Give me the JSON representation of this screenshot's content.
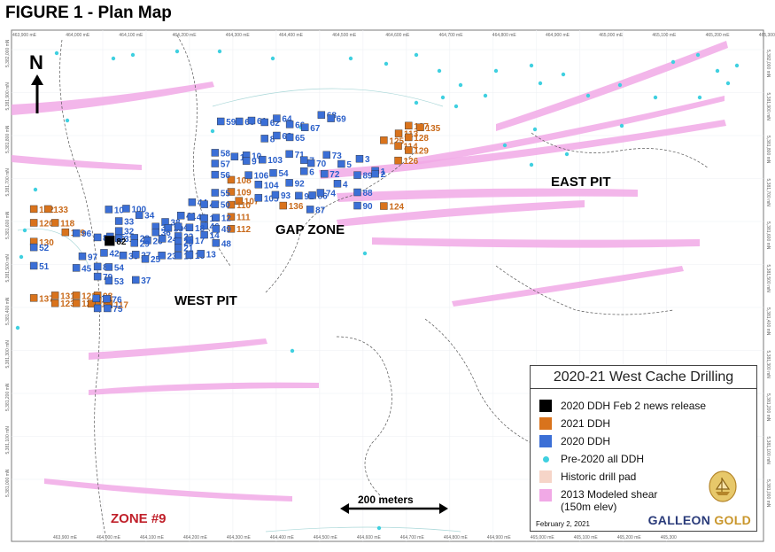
{
  "figure_title": "FIGURE 1 - Plan Map",
  "north_label": "N",
  "scale_bar_label": "200 meters",
  "zones": [
    {
      "id": "west-pit",
      "label": "WEST PIT",
      "color": "#000000"
    },
    {
      "id": "east-pit",
      "label": "EAST PIT",
      "color": "#000000"
    },
    {
      "id": "gap-zone",
      "label": "GAP ZONE",
      "color": "#000000"
    },
    {
      "id": "zone-9",
      "label": "ZONE #9",
      "color": "#c0202a"
    }
  ],
  "easting_labels": [
    "463,900 mE",
    "464,000 mE",
    "464,100 mE",
    "464,200 mE",
    "464,300 mE",
    "464,400 mE",
    "464,500 mE",
    "464,600 mE",
    "464,700 mE",
    "464,800 mE",
    "464,900 mE",
    "465,000 mE",
    "465,100 mE",
    "465,200 mE",
    "465,300"
  ],
  "northing_labels": [
    "5,382,000 mN",
    "5,381,900 mN",
    "5,381,800 mN",
    "5,381,700 mN",
    "5,381,600 mN",
    "5,381,500 mN",
    "5,381,400 mN",
    "5,381,300 mN",
    "5,381,200 mN",
    "5,381,100 mN",
    "5,381,000 mN"
  ],
  "drill_holes_2020_feb2": [
    {
      "label": "82",
      "e": 464112,
      "n": 5381555
    }
  ],
  "drill_holes_2021": [
    {
      "label": "132",
      "e": 463937,
      "n": 5381629
    },
    {
      "label": "133",
      "e": 463970,
      "n": 5381629
    },
    {
      "label": "120",
      "e": 463937,
      "n": 5381597
    },
    {
      "label": "118",
      "e": 463986,
      "n": 5381597
    },
    {
      "label": "119",
      "e": 464010,
      "n": 5381575
    },
    {
      "label": "130",
      "e": 463937,
      "n": 5381553
    },
    {
      "label": "137",
      "e": 463937,
      "n": 5381422
    },
    {
      "label": "131",
      "e": 463986,
      "n": 5381428
    },
    {
      "label": "121",
      "e": 464035,
      "n": 5381428
    },
    {
      "label": "98",
      "e": 464084,
      "n": 5381428
    },
    {
      "label": "99",
      "e": 464084,
      "n": 5381416
    },
    {
      "label": "123",
      "e": 463986,
      "n": 5381410
    },
    {
      "label": "122",
      "e": 464035,
      "n": 5381410
    },
    {
      "label": "117",
      "e": 464110,
      "n": 5381407
    },
    {
      "label": "115",
      "e": 464070,
      "n": 5381409
    },
    {
      "label": "108",
      "e": 464392,
      "n": 5381697
    },
    {
      "label": "109",
      "e": 464392,
      "n": 5381669
    },
    {
      "label": "107",
      "e": 464410,
      "n": 5381648
    },
    {
      "label": "110",
      "e": 464392,
      "n": 5381639
    },
    {
      "label": "111",
      "e": 464392,
      "n": 5381611
    },
    {
      "label": "112",
      "e": 464392,
      "n": 5381583
    },
    {
      "label": "136",
      "e": 464512,
      "n": 5381637
    },
    {
      "label": "127",
      "e": 464801,
      "n": 5381823
    },
    {
      "label": "135",
      "e": 464828,
      "n": 5381819
    },
    {
      "label": "113",
      "e": 464778,
      "n": 5381805
    },
    {
      "label": "128",
      "e": 464801,
      "n": 5381796
    },
    {
      "label": "125",
      "e": 464744,
      "n": 5381789
    },
    {
      "label": "114",
      "e": 464777,
      "n": 5381776
    },
    {
      "label": "129",
      "e": 464801,
      "n": 5381766
    },
    {
      "label": "126",
      "e": 464777,
      "n": 5381742
    },
    {
      "label": "124",
      "e": 464744,
      "n": 5381636
    }
  ],
  "drill_holes_2020": [
    {
      "label": "59",
      "e": 464368,
      "n": 5381833
    },
    {
      "label": "60",
      "e": 464411,
      "n": 5381833
    },
    {
      "label": "61",
      "e": 464439,
      "n": 5381835
    },
    {
      "label": "62",
      "e": 464469,
      "n": 5381831
    },
    {
      "label": "64",
      "e": 464497,
      "n": 5381840
    },
    {
      "label": "66",
      "e": 464527,
      "n": 5381826
    },
    {
      "label": "67",
      "e": 464562,
      "n": 5381819
    },
    {
      "label": "68",
      "e": 464600,
      "n": 5381848
    },
    {
      "label": "69",
      "e": 464622,
      "n": 5381840
    },
    {
      "label": "8",
      "e": 464469,
      "n": 5381793
    },
    {
      "label": "63",
      "e": 464497,
      "n": 5381800
    },
    {
      "label": "65",
      "e": 464527,
      "n": 5381796
    },
    {
      "label": "58",
      "e": 464355,
      "n": 5381760
    },
    {
      "label": "11",
      "e": 464400,
      "n": 5381751
    },
    {
      "label": "10",
      "e": 464427,
      "n": 5381754
    },
    {
      "label": "9",
      "e": 464427,
      "n": 5381741
    },
    {
      "label": "103",
      "e": 464464,
      "n": 5381744
    },
    {
      "label": "71",
      "e": 464526,
      "n": 5381757
    },
    {
      "label": "7",
      "e": 464560,
      "n": 5381743
    },
    {
      "label": "70",
      "e": 464576,
      "n": 5381736
    },
    {
      "label": "73",
      "e": 464612,
      "n": 5381755
    },
    {
      "label": "3",
      "e": 464688,
      "n": 5381746
    },
    {
      "label": "5",
      "e": 464646,
      "n": 5381734
    },
    {
      "label": "57",
      "e": 464355,
      "n": 5381735
    },
    {
      "label": "56",
      "e": 464355,
      "n": 5381709
    },
    {
      "label": "106",
      "e": 464432,
      "n": 5381708
    },
    {
      "label": "54",
      "e": 464489,
      "n": 5381713
    },
    {
      "label": "6",
      "e": 464560,
      "n": 5381717
    },
    {
      "label": "72",
      "e": 464607,
      "n": 5381711
    },
    {
      "label": "89",
      "e": 464683,
      "n": 5381708
    },
    {
      "label": "1",
      "e": 464724,
      "n": 5381718
    },
    {
      "label": "2",
      "e": 464724,
      "n": 5381711
    },
    {
      "label": "104",
      "e": 464455,
      "n": 5381686
    },
    {
      "label": "92",
      "e": 464526,
      "n": 5381690
    },
    {
      "label": "4",
      "e": 464637,
      "n": 5381688
    },
    {
      "label": "55",
      "e": 464355,
      "n": 5381667
    },
    {
      "label": "105",
      "e": 464455,
      "n": 5381655
    },
    {
      "label": "93",
      "e": 464494,
      "n": 5381662
    },
    {
      "label": "91",
      "e": 464548,
      "n": 5381660
    },
    {
      "label": "86",
      "e": 464579,
      "n": 5381661
    },
    {
      "label": "74",
      "e": 464598,
      "n": 5381667
    },
    {
      "label": "88",
      "e": 464683,
      "n": 5381668
    },
    {
      "label": "87",
      "e": 464574,
      "n": 5381628
    },
    {
      "label": "90",
      "e": 464683,
      "n": 5381637
    },
    {
      "label": "44",
      "e": 464302,
      "n": 5381645
    },
    {
      "label": "47",
      "e": 464330,
      "n": 5381640
    },
    {
      "label": "50",
      "e": 464355,
      "n": 5381640
    },
    {
      "label": "100",
      "e": 464150,
      "n": 5381630
    },
    {
      "label": "10b",
      "e": 464110,
      "n": 5381628
    },
    {
      "label": "34",
      "e": 464180,
      "n": 5381615
    },
    {
      "label": "41",
      "e": 464276,
      "n": 5381614
    },
    {
      "label": "43",
      "e": 464300,
      "n": 5381611
    },
    {
      "label": "15",
      "e": 464330,
      "n": 5381608
    },
    {
      "label": "12",
      "e": 464357,
      "n": 5381609
    },
    {
      "label": "33",
      "e": 464133,
      "n": 5381601
    },
    {
      "label": "38",
      "e": 464240,
      "n": 5381599
    },
    {
      "label": "46",
      "e": 464330,
      "n": 5381590
    },
    {
      "label": "35",
      "e": 464218,
      "n": 5381588
    },
    {
      "label": "39",
      "e": 464247,
      "n": 5381585
    },
    {
      "label": "40",
      "e": 464270,
      "n": 5381588
    },
    {
      "label": "18",
      "e": 464296,
      "n": 5381586
    },
    {
      "label": "49",
      "e": 464357,
      "n": 5381583
    },
    {
      "label": "32",
      "e": 464133,
      "n": 5381578
    },
    {
      "label": "96",
      "e": 464035,
      "n": 5381573
    },
    {
      "label": "36",
      "e": 464218,
      "n": 5381575
    },
    {
      "label": "14",
      "e": 464330,
      "n": 5381569
    },
    {
      "label": "22",
      "e": 464270,
      "n": 5381566
    },
    {
      "label": "8b",
      "e": 464084,
      "n": 5381563
    },
    {
      "label": "95",
      "e": 464113,
      "n": 5381565
    },
    {
      "label": "31",
      "e": 464133,
      "n": 5381561
    },
    {
      "label": "28",
      "e": 464169,
      "n": 5381562
    },
    {
      "label": "26",
      "e": 464199,
      "n": 5381556
    },
    {
      "label": "24",
      "e": 464233,
      "n": 5381560
    },
    {
      "label": "17",
      "e": 464296,
      "n": 5381557
    },
    {
      "label": "29",
      "e": 464169,
      "n": 5381550
    },
    {
      "label": "20",
      "e": 464270,
      "n": 5381553
    },
    {
      "label": "48",
      "e": 464357,
      "n": 5381550
    },
    {
      "label": "52",
      "e": 463937,
      "n": 5381540
    },
    {
      "label": "21",
      "e": 464270,
      "n": 5381539
    },
    {
      "label": "42",
      "e": 464099,
      "n": 5381527
    },
    {
      "label": "30",
      "e": 464143,
      "n": 5381521
    },
    {
      "label": "27",
      "e": 464172,
      "n": 5381523
    },
    {
      "label": "23",
      "e": 464232,
      "n": 5381521
    },
    {
      "label": "19",
      "e": 464270,
      "n": 5381521
    },
    {
      "label": "16",
      "e": 464296,
      "n": 5381522
    },
    {
      "label": "13",
      "e": 464322,
      "n": 5381525
    },
    {
      "label": "97",
      "e": 464049,
      "n": 5381519
    },
    {
      "label": "25",
      "e": 464194,
      "n": 5381513
    },
    {
      "label": "51",
      "e": 463937,
      "n": 5381497
    },
    {
      "label": "45",
      "e": 464035,
      "n": 5381492
    },
    {
      "label": "80",
      "e": 464084,
      "n": 5381495
    },
    {
      "label": "54b",
      "e": 464110,
      "n": 5381494
    },
    {
      "label": "79",
      "e": 464084,
      "n": 5381472
    },
    {
      "label": "53",
      "e": 464110,
      "n": 5381462
    },
    {
      "label": "37",
      "e": 464172,
      "n": 5381464
    },
    {
      "label": "78",
      "e": 464081,
      "n": 5381421
    },
    {
      "label": "76",
      "e": 464105,
      "n": 5381420
    },
    {
      "label": "77",
      "e": 464084,
      "n": 5381398
    },
    {
      "label": "75",
      "e": 464107,
      "n": 5381398
    }
  ],
  "legend": {
    "title": "2020-21 West Cache Drilling",
    "items": [
      {
        "label": "2020 DDH Feb 2 news release",
        "color": "#000000",
        "shape": "square"
      },
      {
        "label": "2021 DDH",
        "color": "#d9731c",
        "shape": "square"
      },
      {
        "label": "2020 DDH",
        "color": "#3b6fd6",
        "shape": "square"
      },
      {
        "label": "Pre-2020 all DDH",
        "color": "#3fd0e0",
        "shape": "dot"
      },
      {
        "label": "Historic drill pad",
        "color": "#f6d5c8",
        "shape": "square"
      },
      {
        "label": "2013 Modeled shear",
        "color": "#f1a9e6",
        "shape": "square"
      }
    ],
    "shear_sub_label": "(150m elev)",
    "date": "February 2, 2021"
  },
  "brand": {
    "part1": "GALLEON",
    "part2": "GOLD"
  },
  "colors": {
    "ddh_2021": "#d9731c",
    "ddh_2020": "#3b6fd6",
    "ddh_2020_label": "#2a5fc9",
    "ddh_2021_label": "#c96a1a",
    "pre2020": "#3fd0e0",
    "shear": "#f1a9e6",
    "drill_pad": "#f6d5c8"
  }
}
